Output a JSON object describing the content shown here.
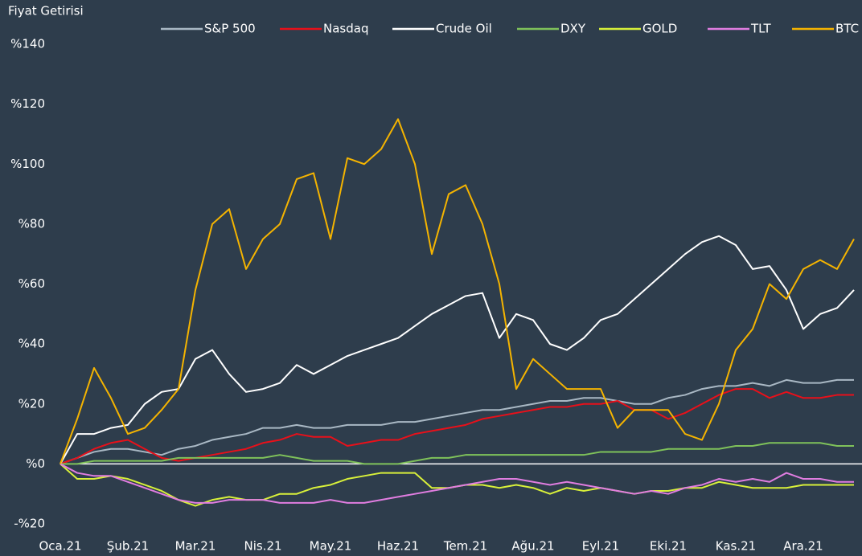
{
  "chart_data": {
    "type": "line",
    "y_axis_label": "Fiyat Getirisi",
    "categories": [
      "Oca.21",
      null,
      null,
      null,
      "Şub.21",
      null,
      null,
      null,
      "Mar.21",
      null,
      null,
      null,
      "Nis.21",
      null,
      null,
      null,
      "May.21",
      null,
      null,
      null,
      "Haz.21",
      null,
      null,
      null,
      "Tem.21",
      null,
      null,
      null,
      "Ağu.21",
      null,
      null,
      null,
      "Eyl.21",
      null,
      null,
      null,
      "Eki.21",
      null,
      null,
      null,
      "Kas.21",
      null,
      null,
      null,
      "Ara.21",
      null,
      null,
      null
    ],
    "ylim": [
      -20,
      140
    ],
    "yticks": [
      {
        "value": -20,
        "label": "-%20"
      },
      {
        "value": 0,
        "label": "%0"
      },
      {
        "value": 20,
        "label": "%20"
      },
      {
        "value": 40,
        "label": "%40"
      },
      {
        "value": 60,
        "label": "%60"
      },
      {
        "value": 80,
        "label": "%80"
      },
      {
        "value": 100,
        "label": "%100"
      },
      {
        "value": 120,
        "label": "%120"
      },
      {
        "value": 140,
        "label": "%140"
      }
    ],
    "legend": "top",
    "series": [
      {
        "name": "S&P 500",
        "color": "#a9b8c4",
        "values": [
          0,
          2,
          4,
          5,
          5,
          4,
          3,
          5,
          6,
          8,
          9,
          10,
          12,
          12,
          13,
          12,
          12,
          13,
          13,
          13,
          14,
          14,
          15,
          16,
          17,
          18,
          18,
          19,
          20,
          21,
          21,
          22,
          22,
          21,
          20,
          20,
          22,
          23,
          25,
          26,
          26,
          27,
          26,
          28,
          27,
          27,
          28,
          28
        ]
      },
      {
        "name": "Nasdaq",
        "color": "#e8101a",
        "values": [
          0,
          2,
          5,
          7,
          8,
          5,
          2,
          1,
          2,
          3,
          4,
          5,
          7,
          8,
          10,
          9,
          9,
          6,
          7,
          8,
          8,
          10,
          11,
          12,
          13,
          15,
          16,
          17,
          18,
          19,
          19,
          20,
          20,
          21,
          18,
          18,
          15,
          17,
          20,
          23,
          25,
          25,
          22,
          24,
          22,
          22,
          23,
          23
        ]
      },
      {
        "name": "Crude Oil",
        "color": "#ffffff",
        "values": [
          0,
          10,
          10,
          12,
          13,
          20,
          24,
          25,
          35,
          38,
          30,
          24,
          25,
          27,
          33,
          30,
          33,
          36,
          38,
          40,
          42,
          46,
          50,
          53,
          56,
          57,
          42,
          50,
          48,
          40,
          38,
          42,
          48,
          50,
          55,
          60,
          65,
          70,
          74,
          76,
          73,
          65,
          66,
          58,
          45,
          50,
          52,
          58
        ]
      },
      {
        "name": "DXY",
        "color": "#7fc25a",
        "values": [
          0,
          0,
          1,
          1,
          1,
          1,
          1,
          2,
          2,
          2,
          2,
          2,
          2,
          3,
          2,
          1,
          1,
          1,
          0,
          0,
          0,
          1,
          2,
          2,
          3,
          3,
          3,
          3,
          3,
          3,
          3,
          3,
          4,
          4,
          4,
          4,
          5,
          5,
          5,
          5,
          6,
          6,
          7,
          7,
          7,
          7,
          6,
          6
        ]
      },
      {
        "name": "GOLD",
        "color": "#d8f03a",
        "values": [
          0,
          -5,
          -5,
          -4,
          -5,
          -7,
          -9,
          -12,
          -14,
          -12,
          -11,
          -12,
          -12,
          -10,
          -10,
          -8,
          -7,
          -5,
          -4,
          -3,
          -3,
          -3,
          -8,
          -8,
          -7,
          -7,
          -8,
          -7,
          -8,
          -10,
          -8,
          -9,
          -8,
          -9,
          -10,
          -9,
          -9,
          -8,
          -8,
          -6,
          -7,
          -8,
          -8,
          -8,
          -7,
          -7,
          -7,
          -7
        ]
      },
      {
        "name": "TLT",
        "color": "#e07de0",
        "values": [
          0,
          -3,
          -4,
          -4,
          -6,
          -8,
          -10,
          -12,
          -13,
          -13,
          -12,
          -12,
          -12,
          -13,
          -13,
          -13,
          -12,
          -13,
          -13,
          -12,
          -11,
          -10,
          -9,
          -8,
          -7,
          -6,
          -5,
          -5,
          -6,
          -7,
          -6,
          -7,
          -8,
          -9,
          -10,
          -9,
          -10,
          -8,
          -7,
          -5,
          -6,
          -5,
          -6,
          -3,
          -5,
          -5,
          -6,
          -6
        ]
      },
      {
        "name": "BTC",
        "color": "#f5b400",
        "values": [
          0,
          15,
          32,
          22,
          10,
          12,
          18,
          25,
          58,
          80,
          85,
          65,
          75,
          80,
          95,
          97,
          75,
          102,
          100,
          105,
          115,
          100,
          70,
          90,
          93,
          80,
          60,
          25,
          35,
          30,
          25,
          25,
          25,
          12,
          18,
          18,
          18,
          10,
          8,
          20,
          38,
          45,
          60,
          55,
          65,
          68,
          65,
          75
        ]
      }
    ]
  }
}
